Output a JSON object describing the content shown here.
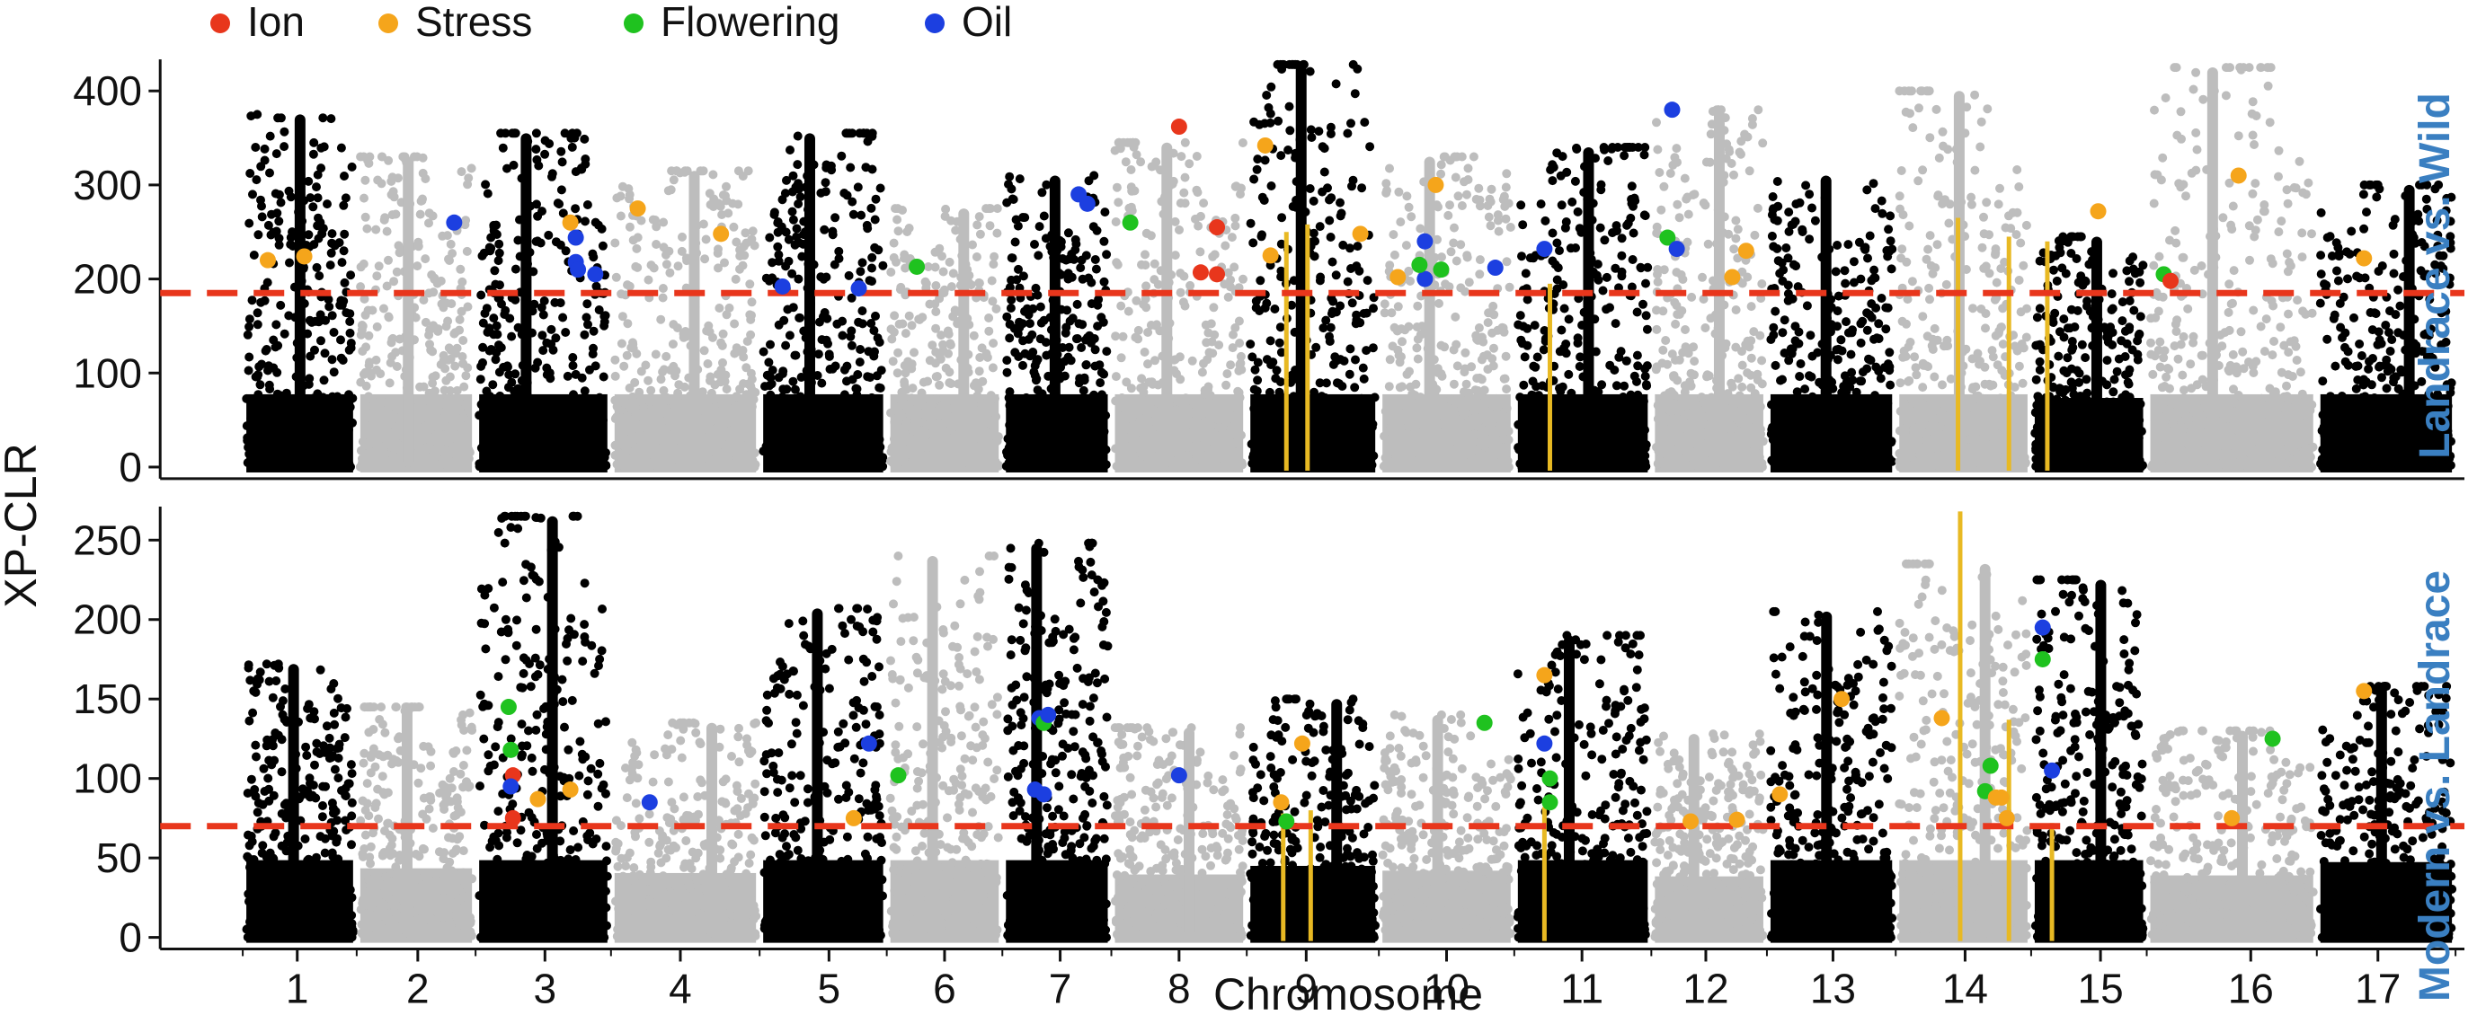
{
  "chart_data": {
    "type": "scatter",
    "subtype": "manhattan",
    "ylabel": "XP-CLR",
    "xlabel": "Chromosome",
    "chromosomes": [
      "1",
      "2",
      "3",
      "4",
      "5",
      "6",
      "7",
      "8",
      "9",
      "10",
      "11",
      "12",
      "13",
      "14",
      "15",
      "16",
      "17"
    ],
    "legend": [
      {
        "label": "Ion",
        "color": "#e8361c"
      },
      {
        "label": "Stress",
        "color": "#f5a51b"
      },
      {
        "label": "Flowering",
        "color": "#1fc21f"
      },
      {
        "label": "Oil",
        "color": "#1c3fe0"
      }
    ],
    "colors": {
      "odd": "#000000",
      "even": "#bdbdbd",
      "threshold": "#e8361c",
      "highlight": "#e8b923",
      "side_label": "#3a7fc1"
    },
    "panels": [
      {
        "name": "Landrace vs. Wild",
        "ylim": [
          0,
          430
        ],
        "yticks": [
          0,
          100,
          200,
          300,
          400
        ],
        "threshold": 185,
        "chrom_max": [
          375,
          330,
          355,
          315,
          355,
          275,
          310,
          345,
          428,
          330,
          340,
          380,
          310,
          400,
          245,
          425,
          300
        ],
        "vlines": [
          {
            "x": 9.25,
            "y": 250
          },
          {
            "x": 9.45,
            "y": 258
          },
          {
            "x": 11.2,
            "y": 195
          },
          {
            "x": 14.45,
            "y": 265
          },
          {
            "x": 14.92,
            "y": 245
          },
          {
            "x": 15.05,
            "y": 240
          }
        ],
        "points": [
          {
            "x": 1.15,
            "y": 220,
            "t": "Stress"
          },
          {
            "x": 1.55,
            "y": 224,
            "t": "Stress"
          },
          {
            "x": 2.9,
            "y": 260,
            "t": "Oil"
          },
          {
            "x": 3.75,
            "y": 260,
            "t": "Stress"
          },
          {
            "x": 3.8,
            "y": 244,
            "t": "Oil"
          },
          {
            "x": 3.8,
            "y": 218,
            "t": "Oil"
          },
          {
            "x": 3.82,
            "y": 210,
            "t": "Oil"
          },
          {
            "x": 3.98,
            "y": 205,
            "t": "Oil"
          },
          {
            "x": 4.1,
            "y": 275,
            "t": "Stress"
          },
          {
            "x": 4.8,
            "y": 248,
            "t": "Stress"
          },
          {
            "x": 5.1,
            "y": 192,
            "t": "Oil"
          },
          {
            "x": 5.85,
            "y": 190,
            "t": "Oil"
          },
          {
            "x": 6.2,
            "y": 213,
            "t": "Flowering"
          },
          {
            "x": 7.75,
            "y": 290,
            "t": "Oil"
          },
          {
            "x": 7.85,
            "y": 280,
            "t": "Oil"
          },
          {
            "x": 8.05,
            "y": 260,
            "t": "Flowering"
          },
          {
            "x": 8.5,
            "y": 362,
            "t": "Ion"
          },
          {
            "x": 8.7,
            "y": 207,
            "t": "Ion"
          },
          {
            "x": 8.85,
            "y": 205,
            "t": "Ion"
          },
          {
            "x": 8.85,
            "y": 255,
            "t": "Ion"
          },
          {
            "x": 9.05,
            "y": 342,
            "t": "Stress"
          },
          {
            "x": 9.1,
            "y": 225,
            "t": "Stress"
          },
          {
            "x": 9.95,
            "y": 248,
            "t": "Stress"
          },
          {
            "x": 10.05,
            "y": 202,
            "t": "Stress"
          },
          {
            "x": 10.3,
            "y": 240,
            "t": "Oil"
          },
          {
            "x": 10.3,
            "y": 200,
            "t": "Oil"
          },
          {
            "x": 10.25,
            "y": 215,
            "t": "Flowering"
          },
          {
            "x": 10.4,
            "y": 300,
            "t": "Stress"
          },
          {
            "x": 10.45,
            "y": 210,
            "t": "Flowering"
          },
          {
            "x": 10.95,
            "y": 212,
            "t": "Oil"
          },
          {
            "x": 11.15,
            "y": 232,
            "t": "Oil"
          },
          {
            "x": 12.1,
            "y": 380,
            "t": "Oil"
          },
          {
            "x": 12.05,
            "y": 244,
            "t": "Flowering"
          },
          {
            "x": 12.15,
            "y": 232,
            "t": "Oil"
          },
          {
            "x": 12.75,
            "y": 202,
            "t": "Stress"
          },
          {
            "x": 12.9,
            "y": 230,
            "t": "Stress"
          },
          {
            "x": 15.6,
            "y": 272,
            "t": "Stress"
          },
          {
            "x": 16.0,
            "y": 205,
            "t": "Flowering"
          },
          {
            "x": 16.05,
            "y": 198,
            "t": "Ion"
          },
          {
            "x": 16.55,
            "y": 310,
            "t": "Stress"
          },
          {
            "x": 17.3,
            "y": 222,
            "t": "Stress"
          }
        ]
      },
      {
        "name": "Modern vs. Landrace",
        "ylim": [
          0,
          270
        ],
        "yticks": [
          0,
          50,
          100,
          150,
          200,
          250
        ],
        "threshold": 70,
        "chrom_max": [
          172,
          145,
          265,
          135,
          207,
          240,
          248,
          132,
          150,
          140,
          190,
          128,
          205,
          235,
          225,
          130,
          158
        ],
        "vlines": [
          {
            "x": 9.22,
            "y": 78
          },
          {
            "x": 9.48,
            "y": 80
          },
          {
            "x": 11.15,
            "y": 82
          },
          {
            "x": 14.47,
            "y": 268
          },
          {
            "x": 14.92,
            "y": 137
          },
          {
            "x": 15.1,
            "y": 72
          }
        ],
        "points": [
          {
            "x": 3.18,
            "y": 145,
            "t": "Flowering"
          },
          {
            "x": 3.2,
            "y": 118,
            "t": "Flowering"
          },
          {
            "x": 3.22,
            "y": 102,
            "t": "Ion"
          },
          {
            "x": 3.2,
            "y": 95,
            "t": "Oil"
          },
          {
            "x": 3.22,
            "y": 75,
            "t": "Ion"
          },
          {
            "x": 3.45,
            "y": 87,
            "t": "Stress"
          },
          {
            "x": 3.75,
            "y": 93,
            "t": "Stress"
          },
          {
            "x": 4.2,
            "y": 85,
            "t": "Oil"
          },
          {
            "x": 5.8,
            "y": 75,
            "t": "Stress"
          },
          {
            "x": 5.95,
            "y": 122,
            "t": "Oil"
          },
          {
            "x": 6.0,
            "y": 102,
            "t": "Flowering"
          },
          {
            "x": 7.3,
            "y": 138,
            "t": "Oil"
          },
          {
            "x": 7.35,
            "y": 135,
            "t": "Flowering"
          },
          {
            "x": 7.4,
            "y": 140,
            "t": "Oil"
          },
          {
            "x": 7.25,
            "y": 93,
            "t": "Oil"
          },
          {
            "x": 7.35,
            "y": 90,
            "t": "Oil"
          },
          {
            "x": 8.5,
            "y": 102,
            "t": "Oil"
          },
          {
            "x": 9.2,
            "y": 85,
            "t": "Stress"
          },
          {
            "x": 9.25,
            "y": 73,
            "t": "Flowering"
          },
          {
            "x": 9.4,
            "y": 122,
            "t": "Stress"
          },
          {
            "x": 10.85,
            "y": 135,
            "t": "Flowering"
          },
          {
            "x": 11.15,
            "y": 165,
            "t": "Stress"
          },
          {
            "x": 11.15,
            "y": 122,
            "t": "Oil"
          },
          {
            "x": 11.2,
            "y": 100,
            "t": "Flowering"
          },
          {
            "x": 11.2,
            "y": 85,
            "t": "Flowering"
          },
          {
            "x": 12.3,
            "y": 73,
            "t": "Stress"
          },
          {
            "x": 12.8,
            "y": 74,
            "t": "Stress"
          },
          {
            "x": 13.0,
            "y": 90,
            "t": "Stress"
          },
          {
            "x": 13.6,
            "y": 150,
            "t": "Stress"
          },
          {
            "x": 14.3,
            "y": 138,
            "t": "Stress"
          },
          {
            "x": 14.75,
            "y": 108,
            "t": "Flowering"
          },
          {
            "x": 14.7,
            "y": 92,
            "t": "Flowering"
          },
          {
            "x": 14.8,
            "y": 88,
            "t": "Stress"
          },
          {
            "x": 14.9,
            "y": 75,
            "t": "Stress"
          },
          {
            "x": 14.85,
            "y": 88,
            "t": "Stress"
          },
          {
            "x": 15.0,
            "y": 195,
            "t": "Oil"
          },
          {
            "x": 15.0,
            "y": 175,
            "t": "Flowering"
          },
          {
            "x": 15.1,
            "y": 105,
            "t": "Oil"
          },
          {
            "x": 16.5,
            "y": 75,
            "t": "Stress"
          },
          {
            "x": 16.8,
            "y": 125,
            "t": "Flowering"
          },
          {
            "x": 17.3,
            "y": 155,
            "t": "Stress"
          }
        ]
      }
    ]
  }
}
